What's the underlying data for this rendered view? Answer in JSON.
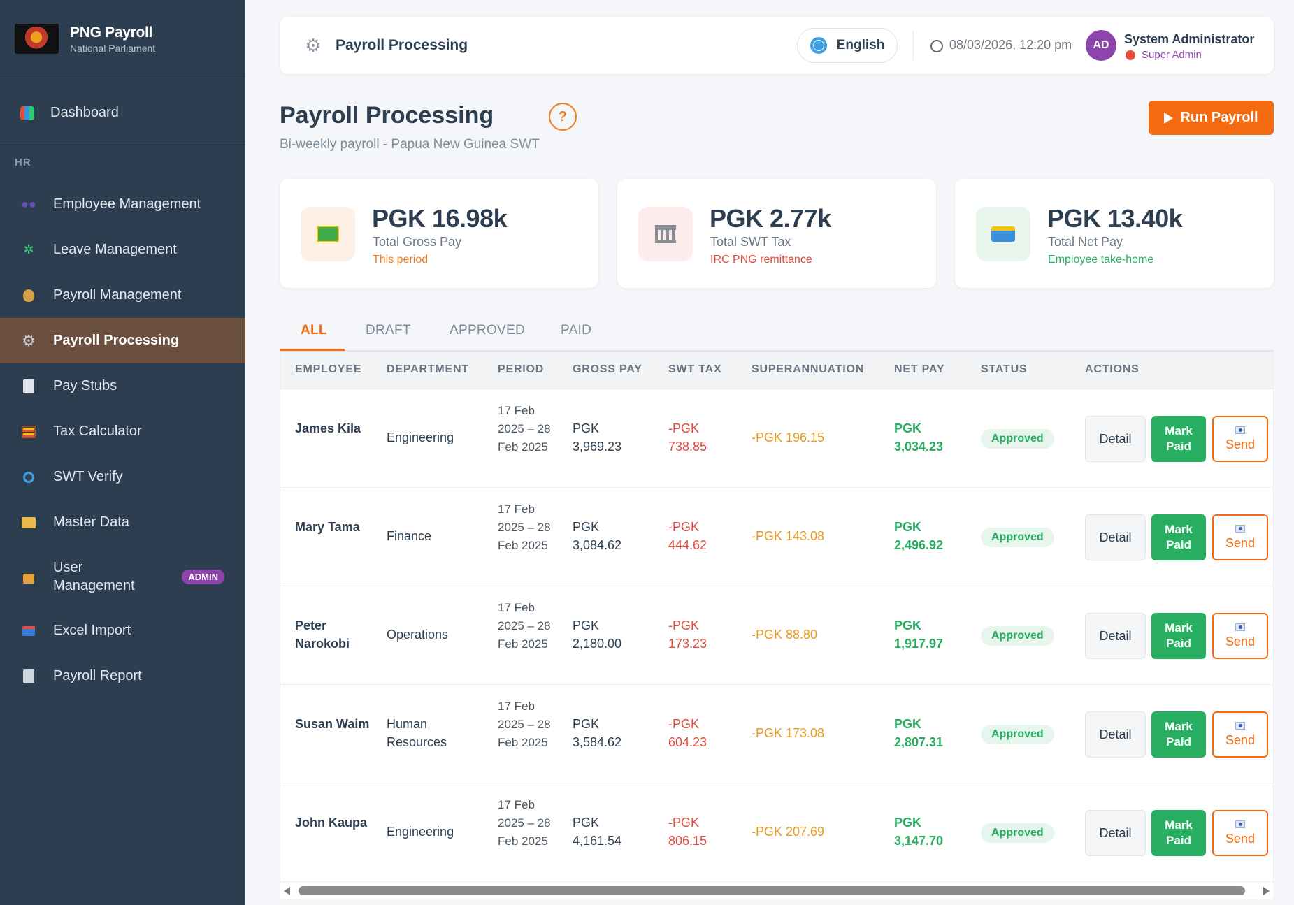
{
  "brand": {
    "title": "PNG Payroll",
    "subtitle": "National Parliament"
  },
  "sidebar": {
    "section_hr": "HR",
    "items": [
      {
        "label": "Dashboard",
        "icon": "bar-chart-icon"
      },
      {
        "label": "Employee Management",
        "icon": "people-icon"
      },
      {
        "label": "Leave Management",
        "icon": "palm-tree-icon"
      },
      {
        "label": "Payroll Management",
        "icon": "money-bag-icon"
      },
      {
        "label": "Payroll Processing",
        "icon": "gear-icon"
      },
      {
        "label": "Pay Stubs",
        "icon": "document-icon"
      },
      {
        "label": "Tax Calculator",
        "icon": "abacus-icon"
      },
      {
        "label": "SWT Verify",
        "icon": "magnifier-icon"
      },
      {
        "label": "Master Data",
        "icon": "folder-icon"
      },
      {
        "label": "User Management",
        "icon": "lock-icon",
        "badge": "ADMIN"
      },
      {
        "label": "Excel Import",
        "icon": "inbox-tray-icon"
      },
      {
        "label": "Payroll Report",
        "icon": "report-icon"
      }
    ]
  },
  "header": {
    "title": "Payroll Processing",
    "language": "English",
    "datetime": "08/03/2026, 12:20 pm",
    "user": {
      "initials": "AD",
      "name": "System Administrator",
      "role": "Super Admin"
    }
  },
  "page": {
    "title": "Payroll Processing",
    "help": "?",
    "subtitle": "Bi-weekly payroll - Papua New Guinea SWT",
    "run_button": "Run Payroll"
  },
  "stats": [
    {
      "value": "PGK 16.98k",
      "label": "Total Gross Pay",
      "note": "This period",
      "icon": "banknote-icon",
      "note_color": "#f07c1a"
    },
    {
      "value": "PGK 2.77k",
      "label": "Total SWT Tax",
      "note": "IRC PNG remittance",
      "icon": "bank-icon",
      "note_color": "#e04b3d"
    },
    {
      "value": "PGK 13.40k",
      "label": "Total Net Pay",
      "note": "Employee take-home",
      "icon": "credit-card-icon",
      "note_color": "#27ae60"
    }
  ],
  "tabs": [
    "ALL",
    "DRAFT",
    "APPROVED",
    "PAID"
  ],
  "table": {
    "headers": [
      "EMPLOYEE",
      "DEPARTMENT",
      "PERIOD",
      "GROSS PAY",
      "SWT TAX",
      "SUPERANNUATION",
      "NET PAY",
      "STATUS",
      "ACTIONS"
    ],
    "actions": {
      "detail": "Detail",
      "paid": "Mark Paid",
      "send": "Send"
    },
    "rows": [
      {
        "employee": "James Kila",
        "department": "Engineering",
        "period": "17 Feb 2025 – 28 Feb 2025",
        "gross": "PGK 3,969.23",
        "swt": "-PGK 738.85",
        "super": "-PGK 196.15",
        "net": "PGK 3,034.23",
        "status": "Approved"
      },
      {
        "employee": "Mary Tama",
        "department": "Finance",
        "period": "17 Feb 2025 – 28 Feb 2025",
        "gross": "PGK 3,084.62",
        "swt": "-PGK 444.62",
        "super": "-PGK 143.08",
        "net": "PGK 2,496.92",
        "status": "Approved"
      },
      {
        "employee": "Peter Narokobi",
        "department": "Operations",
        "period": "17 Feb 2025 – 28 Feb 2025",
        "gross": "PGK 2,180.00",
        "swt": "-PGK 173.23",
        "super": "-PGK 88.80",
        "net": "PGK 1,917.97",
        "status": "Approved"
      },
      {
        "employee": "Susan Waim",
        "department": "Human Resources",
        "period": "17 Feb 2025 – 28 Feb 2025",
        "gross": "PGK 3,584.62",
        "swt": "-PGK 604.23",
        "super": "-PGK 173.08",
        "net": "PGK 2,807.31",
        "status": "Approved"
      },
      {
        "employee": "John Kaupa",
        "department": "Engineering",
        "period": "17 Feb 2025 – 28 Feb 2025",
        "gross": "PGK 4,161.54",
        "swt": "-PGK 806.15",
        "super": "-PGK 207.69",
        "net": "PGK 3,147.70",
        "status": "Approved"
      }
    ]
  },
  "colors": {
    "accent": "#f36a10",
    "sidebar": "#2d3e50",
    "active_nav": "#6b4f3f",
    "success": "#27ae60",
    "danger": "#e04b3d"
  }
}
